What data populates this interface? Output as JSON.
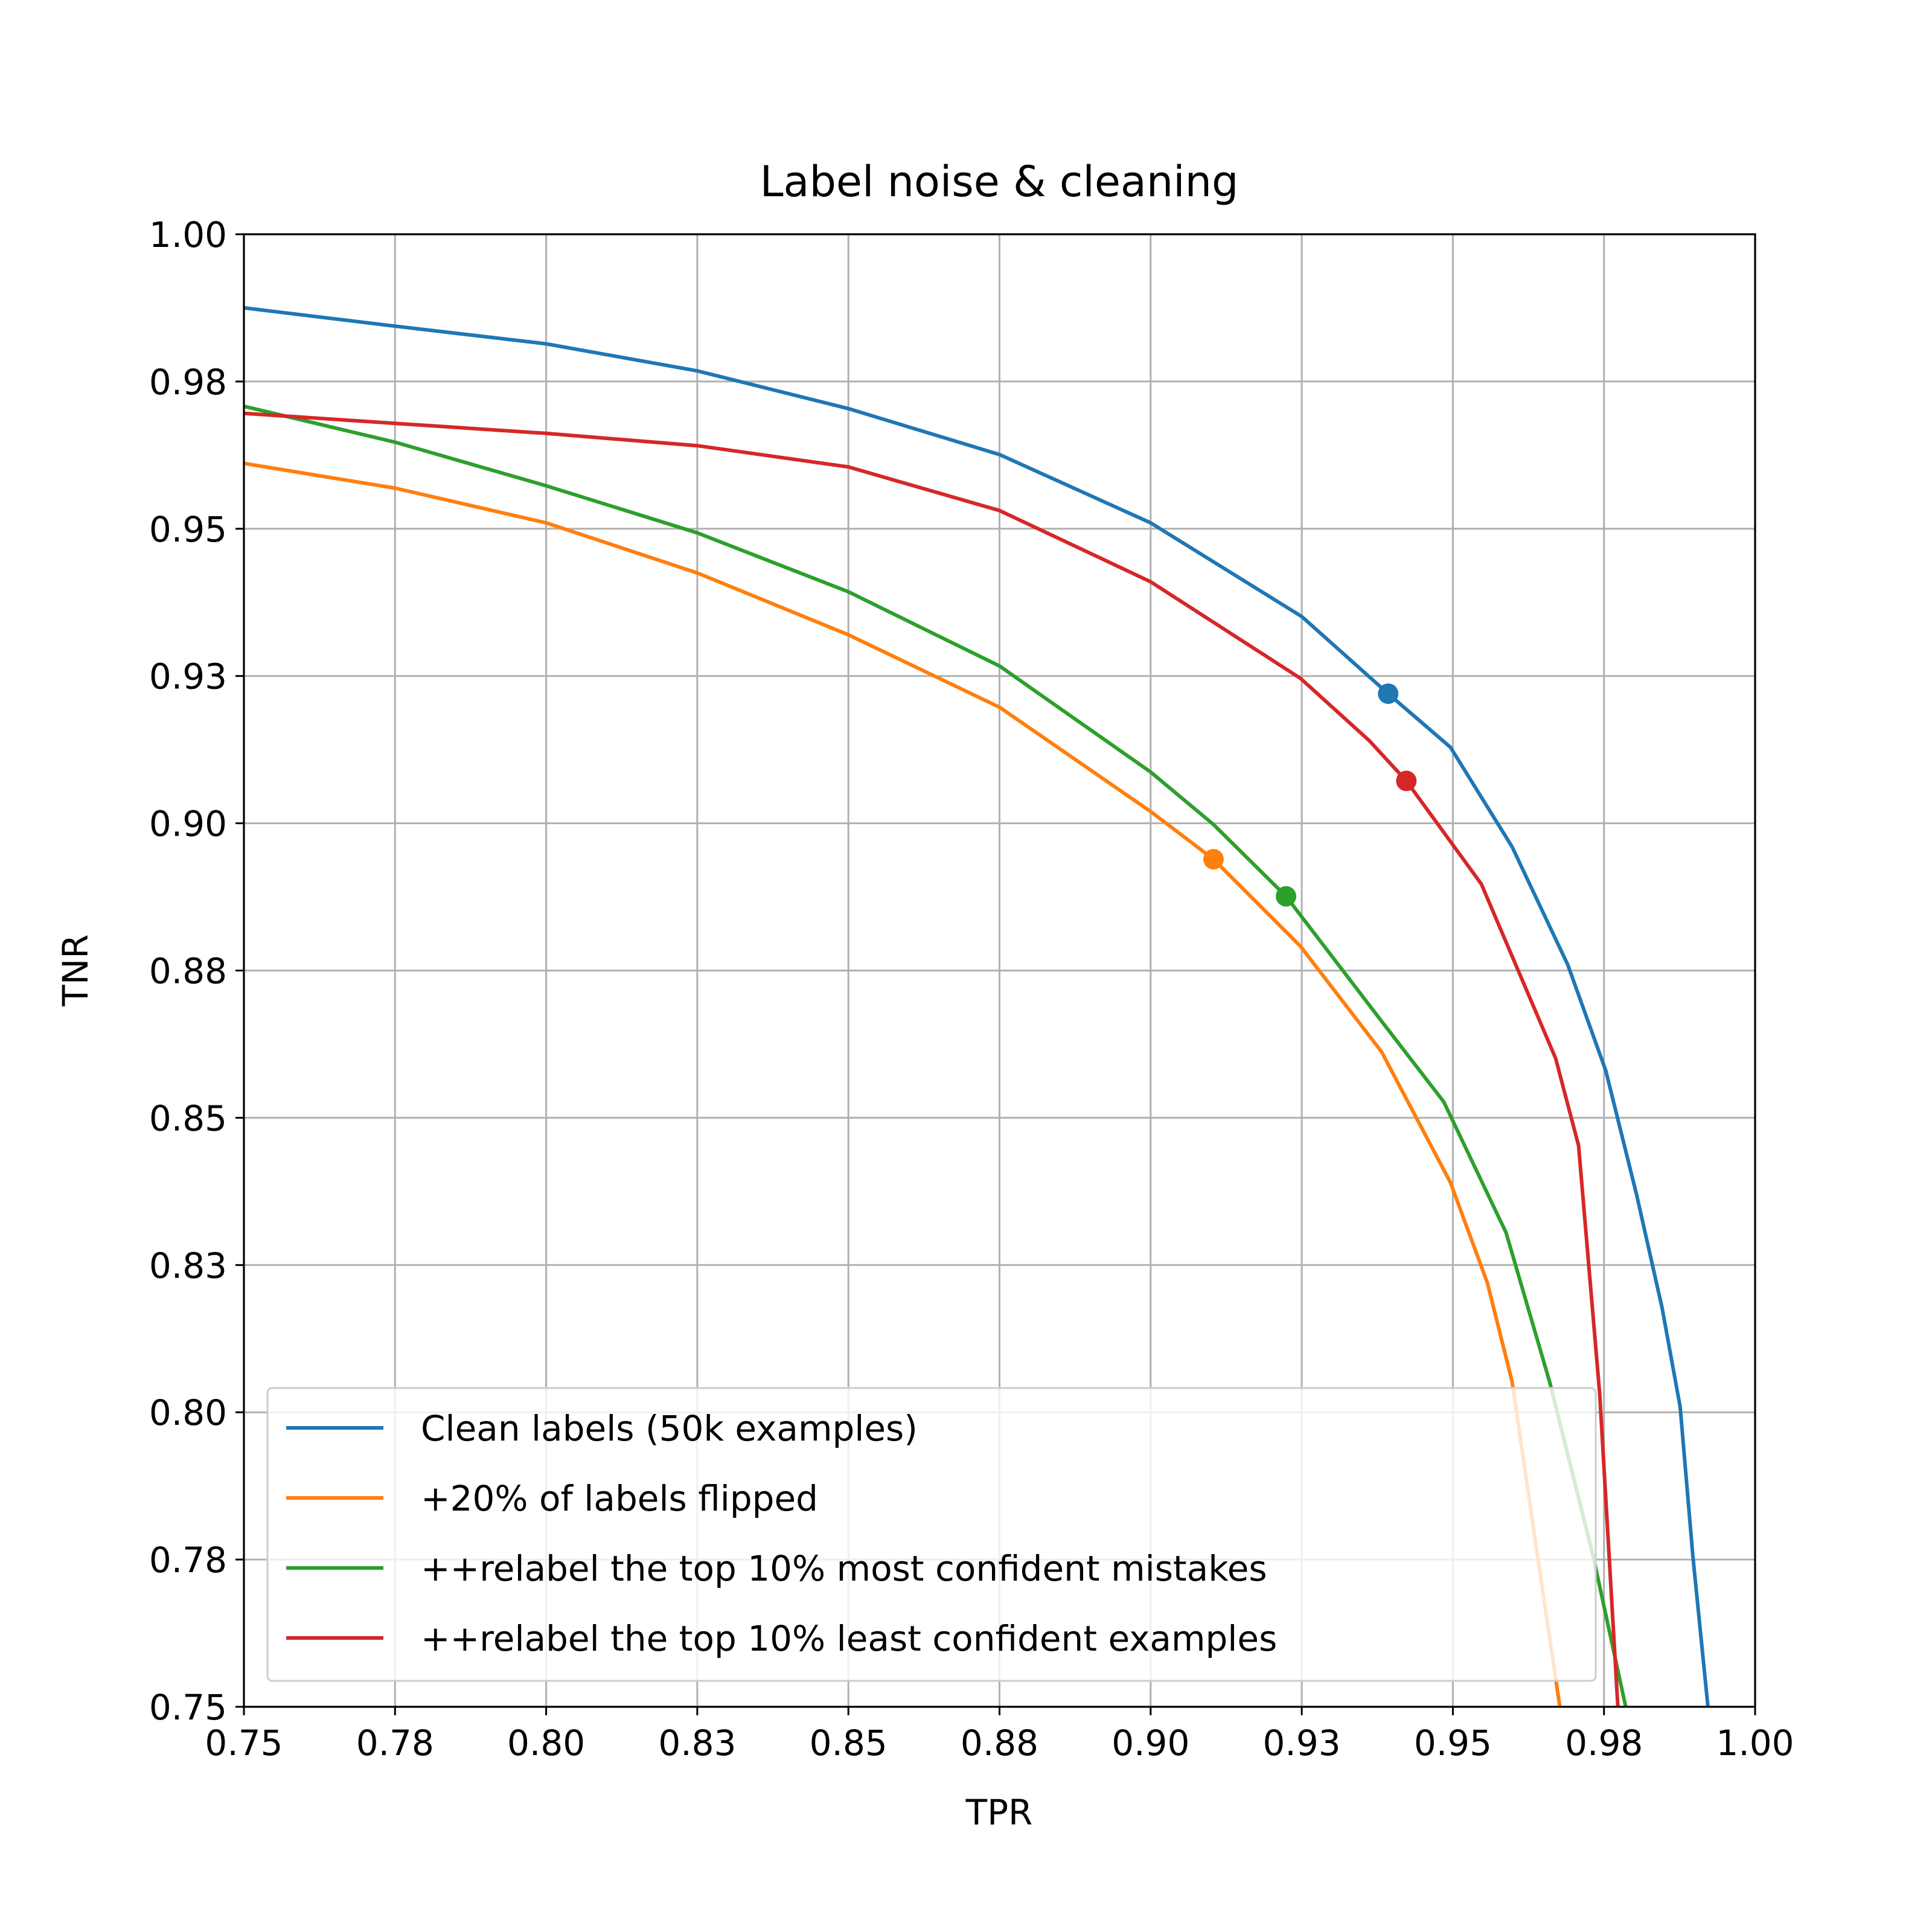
{
  "chart_data": {
    "type": "line",
    "title": "Label noise & cleaning",
    "x_label": "TPR",
    "y_label": "TNR",
    "xlim": [
      0.75,
      1.0
    ],
    "ylim": [
      0.75,
      1.0
    ],
    "xticks": [
      0.75,
      {
        "value": 0.775,
        "label": "0.78"
      },
      {
        "value": 0.8,
        "label": "0.80"
      },
      {
        "value": 0.825,
        "label": "0.83"
      },
      {
        "value": 0.85,
        "label": "0.85"
      },
      {
        "value": 0.875,
        "label": "0.88"
      },
      {
        "value": 0.9,
        "label": "0.90"
      },
      {
        "value": 0.925,
        "label": "0.93"
      },
      {
        "value": 0.95,
        "label": "0.95"
      },
      {
        "value": 0.975,
        "label": "0.98"
      },
      {
        "value": 1.0,
        "label": "1.00"
      }
    ],
    "yticks": [
      0.75,
      {
        "value": 0.775,
        "label": "0.78"
      },
      {
        "value": 0.8,
        "label": "0.80"
      },
      {
        "value": 0.825,
        "label": "0.83"
      },
      {
        "value": 0.85,
        "label": "0.85"
      },
      {
        "value": 0.875,
        "label": "0.88"
      },
      {
        "value": 0.9,
        "label": "0.90"
      },
      {
        "value": 0.925,
        "label": "0.93"
      },
      {
        "value": 0.95,
        "label": "0.95"
      },
      {
        "value": 0.975,
        "label": "0.98"
      },
      {
        "value": 1.0,
        "label": "1.00"
      }
    ],
    "grid": true,
    "legend": "lower left",
    "series": [
      {
        "name": "Clean labels (50k examples)",
        "color": "#1f77b4",
        "x": [
          0.75,
          0.775,
          0.8,
          0.825,
          0.85,
          0.875,
          0.9,
          0.925,
          0.9393,
          0.9496,
          0.9598,
          0.969,
          0.9753,
          0.9804,
          0.9846,
          0.9876,
          0.9897,
          0.9922
        ],
        "values": [
          0.9875,
          0.9844,
          0.9814,
          0.9768,
          0.9704,
          0.9626,
          0.951,
          0.9351,
          0.922,
          0.9129,
          0.896,
          0.876,
          0.858,
          0.8369,
          0.8178,
          0.8009,
          0.7756,
          0.75
        ],
        "marker": {
          "x": 0.9393,
          "y": 0.922
        }
      },
      {
        "name": "+20% of labels flipped",
        "color": "#ff7f0e",
        "x": [
          0.75,
          0.775,
          0.8,
          0.825,
          0.85,
          0.875,
          0.9,
          0.9104,
          0.9248,
          0.9382,
          0.9496,
          0.9557,
          0.9598,
          0.964,
          0.9677
        ],
        "values": [
          0.9611,
          0.9569,
          0.951,
          0.9425,
          0.932,
          0.9197,
          0.902,
          0.8939,
          0.8791,
          0.8612,
          0.839,
          0.822,
          0.8052,
          0.7756,
          0.75
        ],
        "marker": {
          "x": 0.9104,
          "y": 0.8939
        }
      },
      {
        "name": "++relabel the top 10% most confident mistakes",
        "color": "#2ca02c",
        "x": [
          0.75,
          0.775,
          0.8,
          0.825,
          0.85,
          0.875,
          0.9,
          0.9104,
          0.9224,
          0.9382,
          0.9485,
          0.9588,
          0.966,
          0.9732,
          0.9786
        ],
        "values": [
          0.9708,
          0.9647,
          0.9573,
          0.9493,
          0.9393,
          0.9267,
          0.9087,
          0.8998,
          0.8876,
          0.8664,
          0.8527,
          0.8305,
          0.8052,
          0.7756,
          0.75
        ],
        "marker": {
          "x": 0.9224,
          "y": 0.8876
        }
      },
      {
        "name": "++relabel the top 10% least confident examples",
        "color": "#d62728",
        "x": [
          0.75,
          0.775,
          0.8,
          0.825,
          0.85,
          0.875,
          0.9,
          0.9248,
          0.9362,
          0.9423,
          0.9547,
          0.967,
          0.9708,
          0.9743,
          0.9773
        ],
        "values": [
          0.9696,
          0.9679,
          0.9662,
          0.9641,
          0.9605,
          0.9531,
          0.941,
          0.9246,
          0.914,
          0.9072,
          0.8897,
          0.8601,
          0.8453,
          0.803,
          0.75
        ],
        "marker": {
          "x": 0.9423,
          "y": 0.9072
        }
      }
    ]
  }
}
